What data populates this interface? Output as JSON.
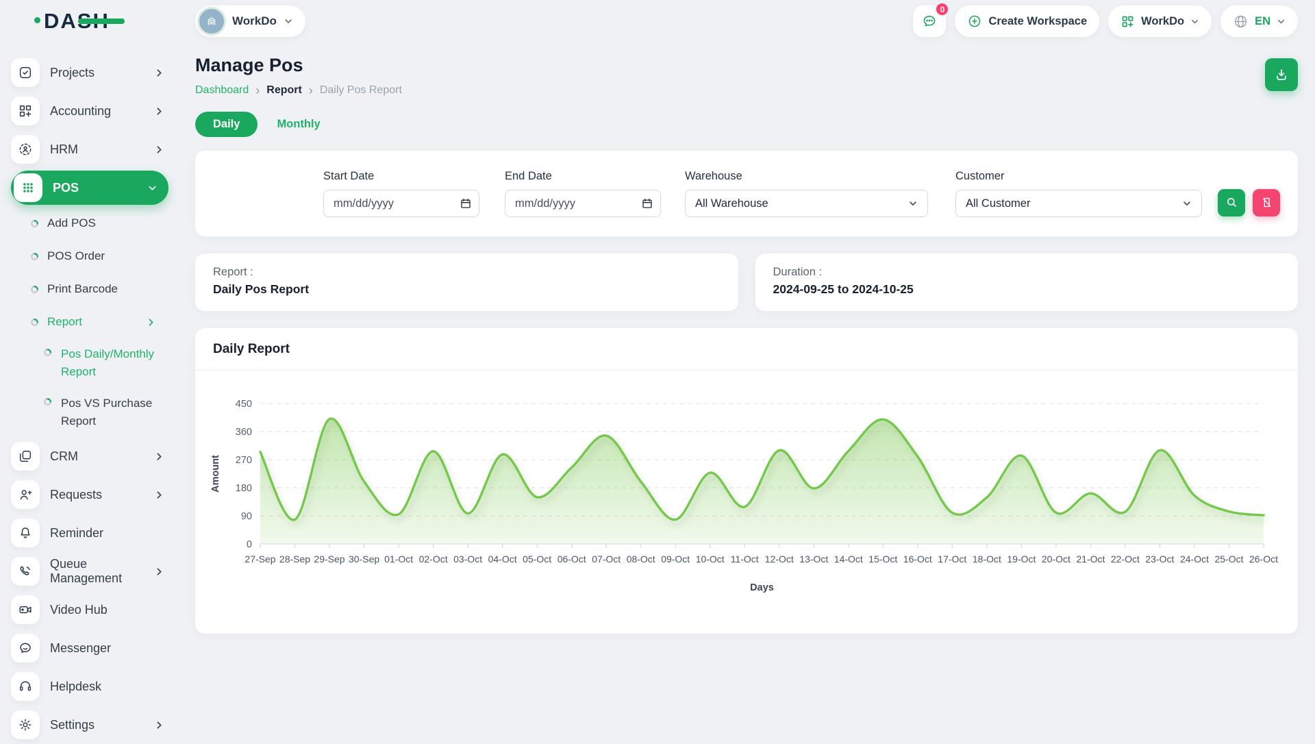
{
  "brand": {
    "logo_text": "DASH"
  },
  "topbar": {
    "workspace_selector": {
      "label": "WorkDo"
    },
    "messages_badge": "0",
    "create_workspace_label": "Create Workspace",
    "workspace_menu_label": "WorkDo",
    "language": "EN"
  },
  "sidebar": {
    "items": [
      {
        "id": "projects",
        "label": "Projects",
        "icon": "check-square-icon",
        "chevron": "right"
      },
      {
        "id": "accounting",
        "label": "Accounting",
        "icon": "grid-plus-icon",
        "chevron": "right"
      },
      {
        "id": "hrm",
        "label": "HRM",
        "icon": "hrm-person-icon",
        "chevron": "right"
      },
      {
        "id": "pos",
        "label": "POS",
        "icon": "dots-grid-icon",
        "chevron": "down",
        "active": true,
        "children": [
          {
            "id": "add-pos",
            "label": "Add POS"
          },
          {
            "id": "pos-order",
            "label": "POS Order"
          },
          {
            "id": "print-barcode",
            "label": "Print Barcode"
          },
          {
            "id": "report",
            "label": "Report",
            "active": true,
            "chevron": "right",
            "children": [
              {
                "id": "pos-daily-monthly-report",
                "label": "Pos Daily/Monthly Report",
                "active": true
              },
              {
                "id": "pos-vs-purchase-report",
                "label": "Pos VS Purchase Report"
              }
            ]
          }
        ]
      },
      {
        "id": "crm",
        "label": "CRM",
        "icon": "crm-icon",
        "chevron": "right"
      },
      {
        "id": "requests",
        "label": "Requests",
        "icon": "user-plus-icon",
        "chevron": "right"
      },
      {
        "id": "reminder",
        "label": "Reminder",
        "icon": "bell-icon"
      },
      {
        "id": "queue-management",
        "label": "Queue Management",
        "icon": "phone-icon",
        "chevron": "right"
      },
      {
        "id": "video-hub",
        "label": "Video Hub",
        "icon": "video-camera-icon"
      },
      {
        "id": "messenger",
        "label": "Messenger",
        "icon": "chat-bubble-icon"
      },
      {
        "id": "helpdesk",
        "label": "Helpdesk",
        "icon": "headset-icon"
      },
      {
        "id": "settings",
        "label": "Settings",
        "icon": "gear-icon",
        "chevron": "right"
      }
    ]
  },
  "page": {
    "title": "Manage Pos",
    "breadcrumb": [
      "Dashboard",
      "Report",
      "Daily Pos Report"
    ],
    "tabs": {
      "daily": "Daily",
      "monthly": "Monthly"
    },
    "filters": {
      "start_date": {
        "label": "Start Date",
        "placeholder": "mm/dd/yyyy"
      },
      "end_date": {
        "label": "End Date",
        "placeholder": "mm/dd/yyyy"
      },
      "warehouse": {
        "label": "Warehouse",
        "value": "All Warehouse"
      },
      "customer": {
        "label": "Customer",
        "value": "All Customer"
      }
    },
    "report_card": {
      "label": "Report :",
      "value": "Daily Pos Report"
    },
    "duration_card": {
      "label": "Duration :",
      "value": "2024-09-25 to 2024-10-25"
    }
  },
  "chart_data": {
    "type": "area",
    "title": "Daily Report",
    "xlabel": "Days",
    "ylabel": "Amount",
    "ylim": [
      0,
      450
    ],
    "yticks": [
      0,
      90,
      180,
      270,
      360,
      450
    ],
    "grid": "dashed-horizontal",
    "legend": "none",
    "categories": [
      "27-Sep",
      "28-Sep",
      "29-Sep",
      "30-Sep",
      "01-Oct",
      "02-Oct",
      "03-Oct",
      "04-Oct",
      "05-Oct",
      "06-Oct",
      "07-Oct",
      "08-Oct",
      "09-Oct",
      "10-Oct",
      "11-Oct",
      "12-Oct",
      "13-Oct",
      "14-Oct",
      "15-Oct",
      "16-Oct",
      "17-Oct",
      "18-Oct",
      "19-Oct",
      "20-Oct",
      "21-Oct",
      "22-Oct",
      "23-Oct",
      "24-Oct",
      "25-Oct",
      "26-Oct"
    ],
    "values": [
      295,
      78,
      400,
      200,
      95,
      297,
      98,
      287,
      150,
      245,
      347,
      200,
      78,
      228,
      119,
      300,
      178,
      298,
      399,
      280,
      100,
      149,
      283,
      100,
      162,
      103,
      300,
      155,
      104,
      92
    ],
    "line_color": "#74c84b",
    "fill_color_top": "rgba(122,200,79,0.45)",
    "fill_color_bottom": "rgba(122,200,79,0.10)"
  },
  "colors": {
    "primary_green": "#1aa85f",
    "link_green": "#20b26b",
    "badge_pink": "#fb3e6e",
    "reset_pink": "#f44570",
    "navy_text": "#17202e",
    "page_bg": "#eff1f5"
  }
}
